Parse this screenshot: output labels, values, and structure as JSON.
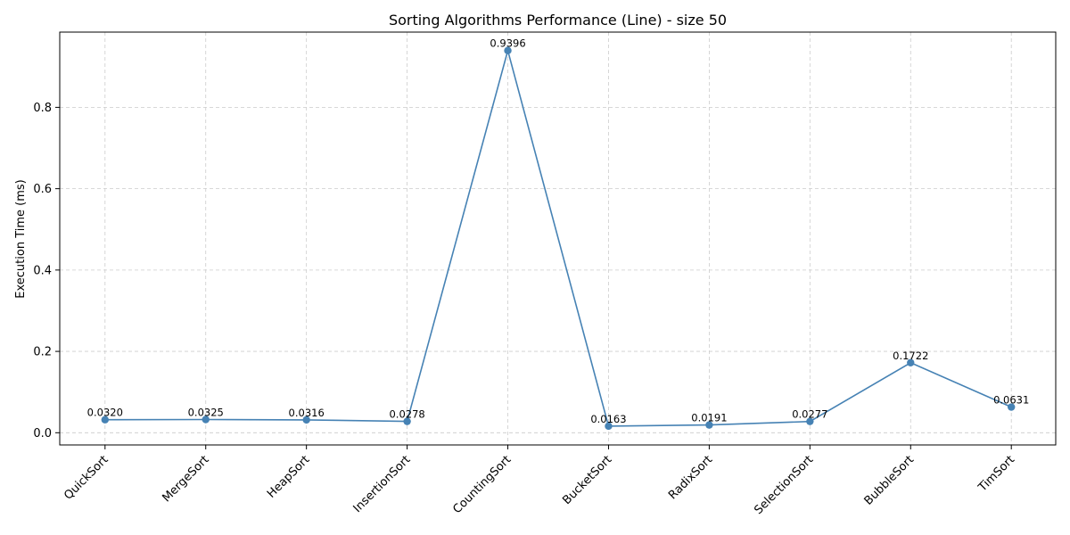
{
  "chart_data": {
    "type": "line",
    "title": "Sorting Algorithms Performance (Line) - size 50",
    "xlabel": "",
    "ylabel": "Execution Time (ms)",
    "categories": [
      "QuickSort",
      "MergeSort",
      "HeapSort",
      "InsertionSort",
      "CountingSort",
      "BucketSort",
      "RadixSort",
      "SelectionSort",
      "BubbleSort",
      "TimSort"
    ],
    "values": [
      0.032,
      0.0325,
      0.0316,
      0.0278,
      0.9396,
      0.0163,
      0.0191,
      0.0277,
      0.1722,
      0.0631
    ],
    "value_labels": [
      "0.0320",
      "0.0325",
      "0.0316",
      "0.0278",
      "0.9396",
      "0.0163",
      "0.0191",
      "0.0277",
      "0.1722",
      "0.0631"
    ],
    "yticks": [
      0.0,
      0.2,
      0.4,
      0.6,
      0.8
    ],
    "ytick_labels": [
      "0.0",
      "0.2",
      "0.4",
      "0.6",
      "0.8"
    ],
    "ylim": [
      -0.03,
      0.985
    ],
    "grid": true,
    "line_color": "#4682b4",
    "grid_color": "#cccccc"
  }
}
